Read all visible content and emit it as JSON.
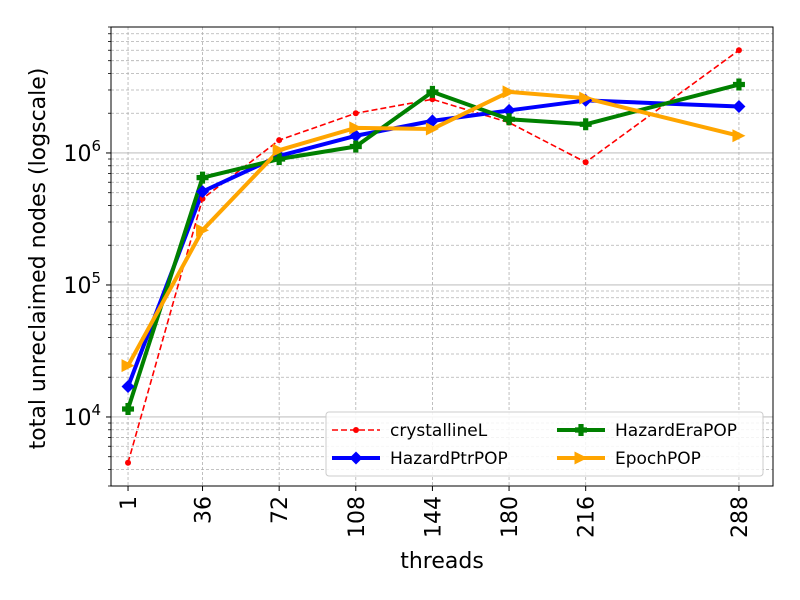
{
  "chart_data": {
    "type": "line",
    "title": "",
    "xlabel": "threads",
    "ylabel": "total unreclaimed nodes (logscale)",
    "yscale": "log",
    "ylim": [
      3000,
      9000000
    ],
    "xlim": [
      -7,
      304
    ],
    "xticks": [
      1,
      36,
      72,
      108,
      144,
      180,
      216,
      288
    ],
    "xtick_labels": [
      "1",
      "36",
      "72",
      "108",
      "144",
      "180",
      "216",
      "288"
    ],
    "yticks": [
      {
        "value": 10000,
        "base": "10",
        "exp": "4"
      },
      {
        "value": 100000,
        "base": "10",
        "exp": "5"
      },
      {
        "value": 1000000,
        "base": "10",
        "exp": "6"
      }
    ],
    "grid": true,
    "legend_position": "lower-right",
    "x": [
      1,
      36,
      72,
      108,
      144,
      180,
      216,
      288
    ],
    "series": [
      {
        "name": "crystallineL",
        "color": "#ff0000",
        "style": "dashed",
        "marker": "circle",
        "values": [
          4500,
          450000,
          1250000,
          2000000,
          2550000,
          1700000,
          850000,
          6000000
        ]
      },
      {
        "name": "HazardPtrPOP",
        "color": "#0000ff",
        "style": "solid",
        "marker": "diamond",
        "values": [
          17000,
          510000,
          950000,
          1350000,
          1750000,
          2100000,
          2500000,
          2250000
        ]
      },
      {
        "name": "HazardEraPOP",
        "color": "#008000",
        "style": "solid",
        "marker": "plus",
        "values": [
          11500,
          650000,
          900000,
          1120000,
          2900000,
          1800000,
          1650000,
          3300000
        ]
      },
      {
        "name": "EpochPOP",
        "color": "#ffa500",
        "style": "solid",
        "marker": "triangle-right",
        "values": [
          24500,
          260000,
          1050000,
          1550000,
          1520000,
          2900000,
          2600000,
          1350000
        ]
      }
    ]
  }
}
